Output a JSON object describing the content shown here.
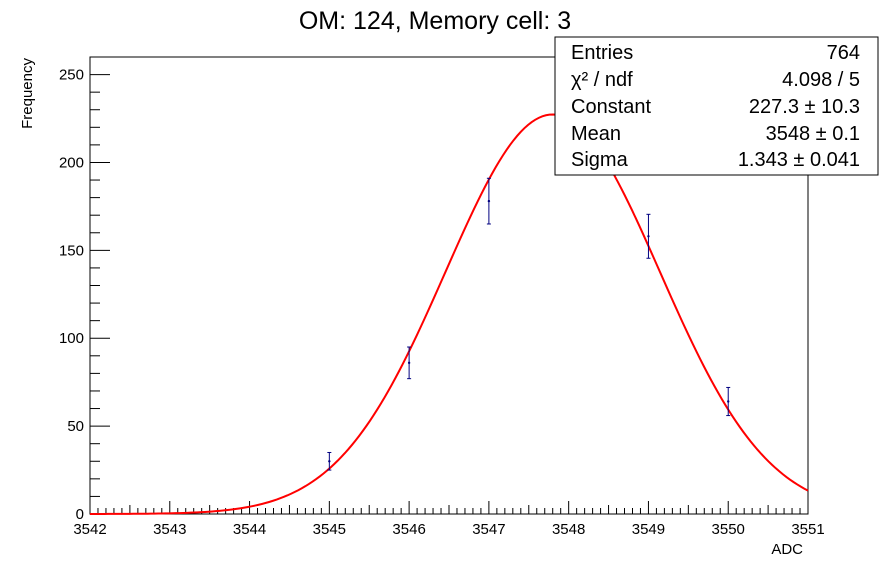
{
  "chart_data": {
    "type": "scatter",
    "title": "OM: 124,   Memory cell: 3",
    "xlabel": "ADC",
    "ylabel": "Frequency",
    "xlim": [
      3542,
      3551
    ],
    "ylim": [
      0,
      260
    ],
    "x_ticks": [
      3542,
      3543,
      3544,
      3545,
      3546,
      3547,
      3548,
      3549,
      3550,
      3551
    ],
    "y_ticks": [
      0,
      50,
      100,
      150,
      200,
      250
    ],
    "grid": false,
    "points": [
      {
        "x": 3545,
        "y": 30,
        "err": 5
      },
      {
        "x": 3546,
        "y": 86,
        "err": 9
      },
      {
        "x": 3547,
        "y": 178,
        "err": 13
      },
      {
        "x": 3549,
        "y": 158,
        "err": 12.5
      },
      {
        "x": 3550,
        "y": 64,
        "err": 8
      }
    ],
    "fit": {
      "function": "gaus",
      "constant": 227.3,
      "mean": 3547.8,
      "sigma": 1.343,
      "color": "#ff0000"
    },
    "stats": [
      {
        "label": "Entries",
        "value": "764"
      },
      {
        "label": "χ² / ndf",
        "value": "4.098 / 5"
      },
      {
        "label": "Constant",
        "value": "227.3 ± 10.3"
      },
      {
        "label": "Mean",
        "value": "3548 ± 0.1"
      },
      {
        "label": "Sigma",
        "value": "1.343 ± 0.041"
      }
    ],
    "colors": {
      "points": "#000080",
      "fit": "#ff0000",
      "frame": "#000000"
    }
  }
}
